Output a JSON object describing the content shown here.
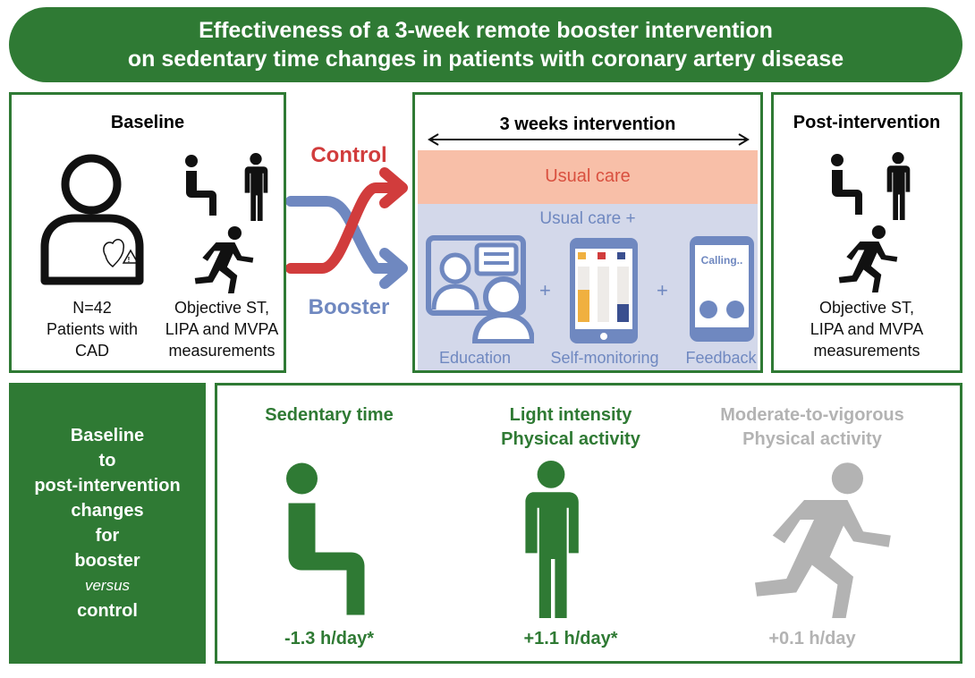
{
  "header": {
    "title_line1": "Effectiveness of a 3-week remote booster intervention",
    "title_line2": "on sedentary time changes in patients with coronary artery disease"
  },
  "baseline": {
    "title": "Baseline",
    "patients_n": "N=42",
    "patients_line2": "Patients with",
    "patients_line3": "CAD",
    "measure_line1": "Objective ST,",
    "measure_line2": "LIPA and MVPA",
    "measure_line3": "measurements"
  },
  "arms": {
    "control": "Control",
    "booster": "Booster",
    "control_color": "#d13c3c",
    "booster_color": "#6f88c0"
  },
  "intervention": {
    "title": "3 weeks intervention",
    "usual_care": "Usual care",
    "usual_care_plus": "Usual care +",
    "plus": "+",
    "education": "Education",
    "self_monitoring": "Self-monitoring",
    "feedback": "Feedback",
    "calling": "Calling.."
  },
  "post": {
    "title": "Post-intervention",
    "measure_line1": "Objective ST,",
    "measure_line2": "LIPA and MVPA",
    "measure_line3": "measurements"
  },
  "results": {
    "side_label": [
      "Baseline",
      "to",
      "post-intervention",
      "changes",
      "for",
      "booster"
    ],
    "side_versus": "versus",
    "side_last": "control",
    "items": [
      {
        "title1": "Sedentary time",
        "title2": "",
        "value": "-1.3 h/day*",
        "color": "#2f7a34"
      },
      {
        "title1": "Light intensity",
        "title2": "Physical activity",
        "value": "+1.1 h/day*",
        "color": "#2f7a34"
      },
      {
        "title1": "Moderate-to-vigorous",
        "title2": "Physical activity",
        "value": "+0.1 h/day",
        "color": "#b3b3b3"
      }
    ]
  },
  "colors": {
    "green": "#2f7a34",
    "usual_care_bg": "#f8bfa8",
    "usual_care_text": "#d9503f",
    "booster_bg": "#d3d8ea",
    "muted": "#b3b3b3"
  }
}
